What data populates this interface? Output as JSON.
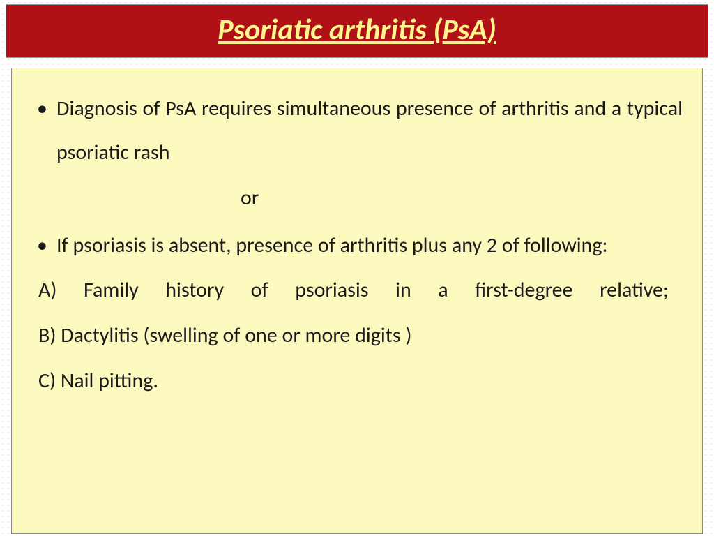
{
  "slide": {
    "title": "Psoriatic arthritis (PsA)",
    "bullets": [
      "Diagnosis of PsA requires  simultaneous presence of arthritis and a typical psoriatic rash",
      " If psoriasis is absent, presence of arthritis  plus  any 2 of following:"
    ],
    "or_text": "or",
    "sub_items": [
      "A) Family  history of psoriasis in a first-degree        relative;",
      "B) Dactylitis (swelling of one or more digits )",
      "C) Nail pitting."
    ],
    "colors": {
      "title_bg": "#b01116",
      "title_text": "#fff68f",
      "content_bg": "#fbf9bd",
      "body_text": "#1a1a1a",
      "slide_bg": "#ffffff"
    },
    "typography": {
      "title_fontsize": 42,
      "body_fontsize": 30,
      "title_weight": "bold",
      "title_style": "italic",
      "title_decoration": "underline"
    }
  }
}
